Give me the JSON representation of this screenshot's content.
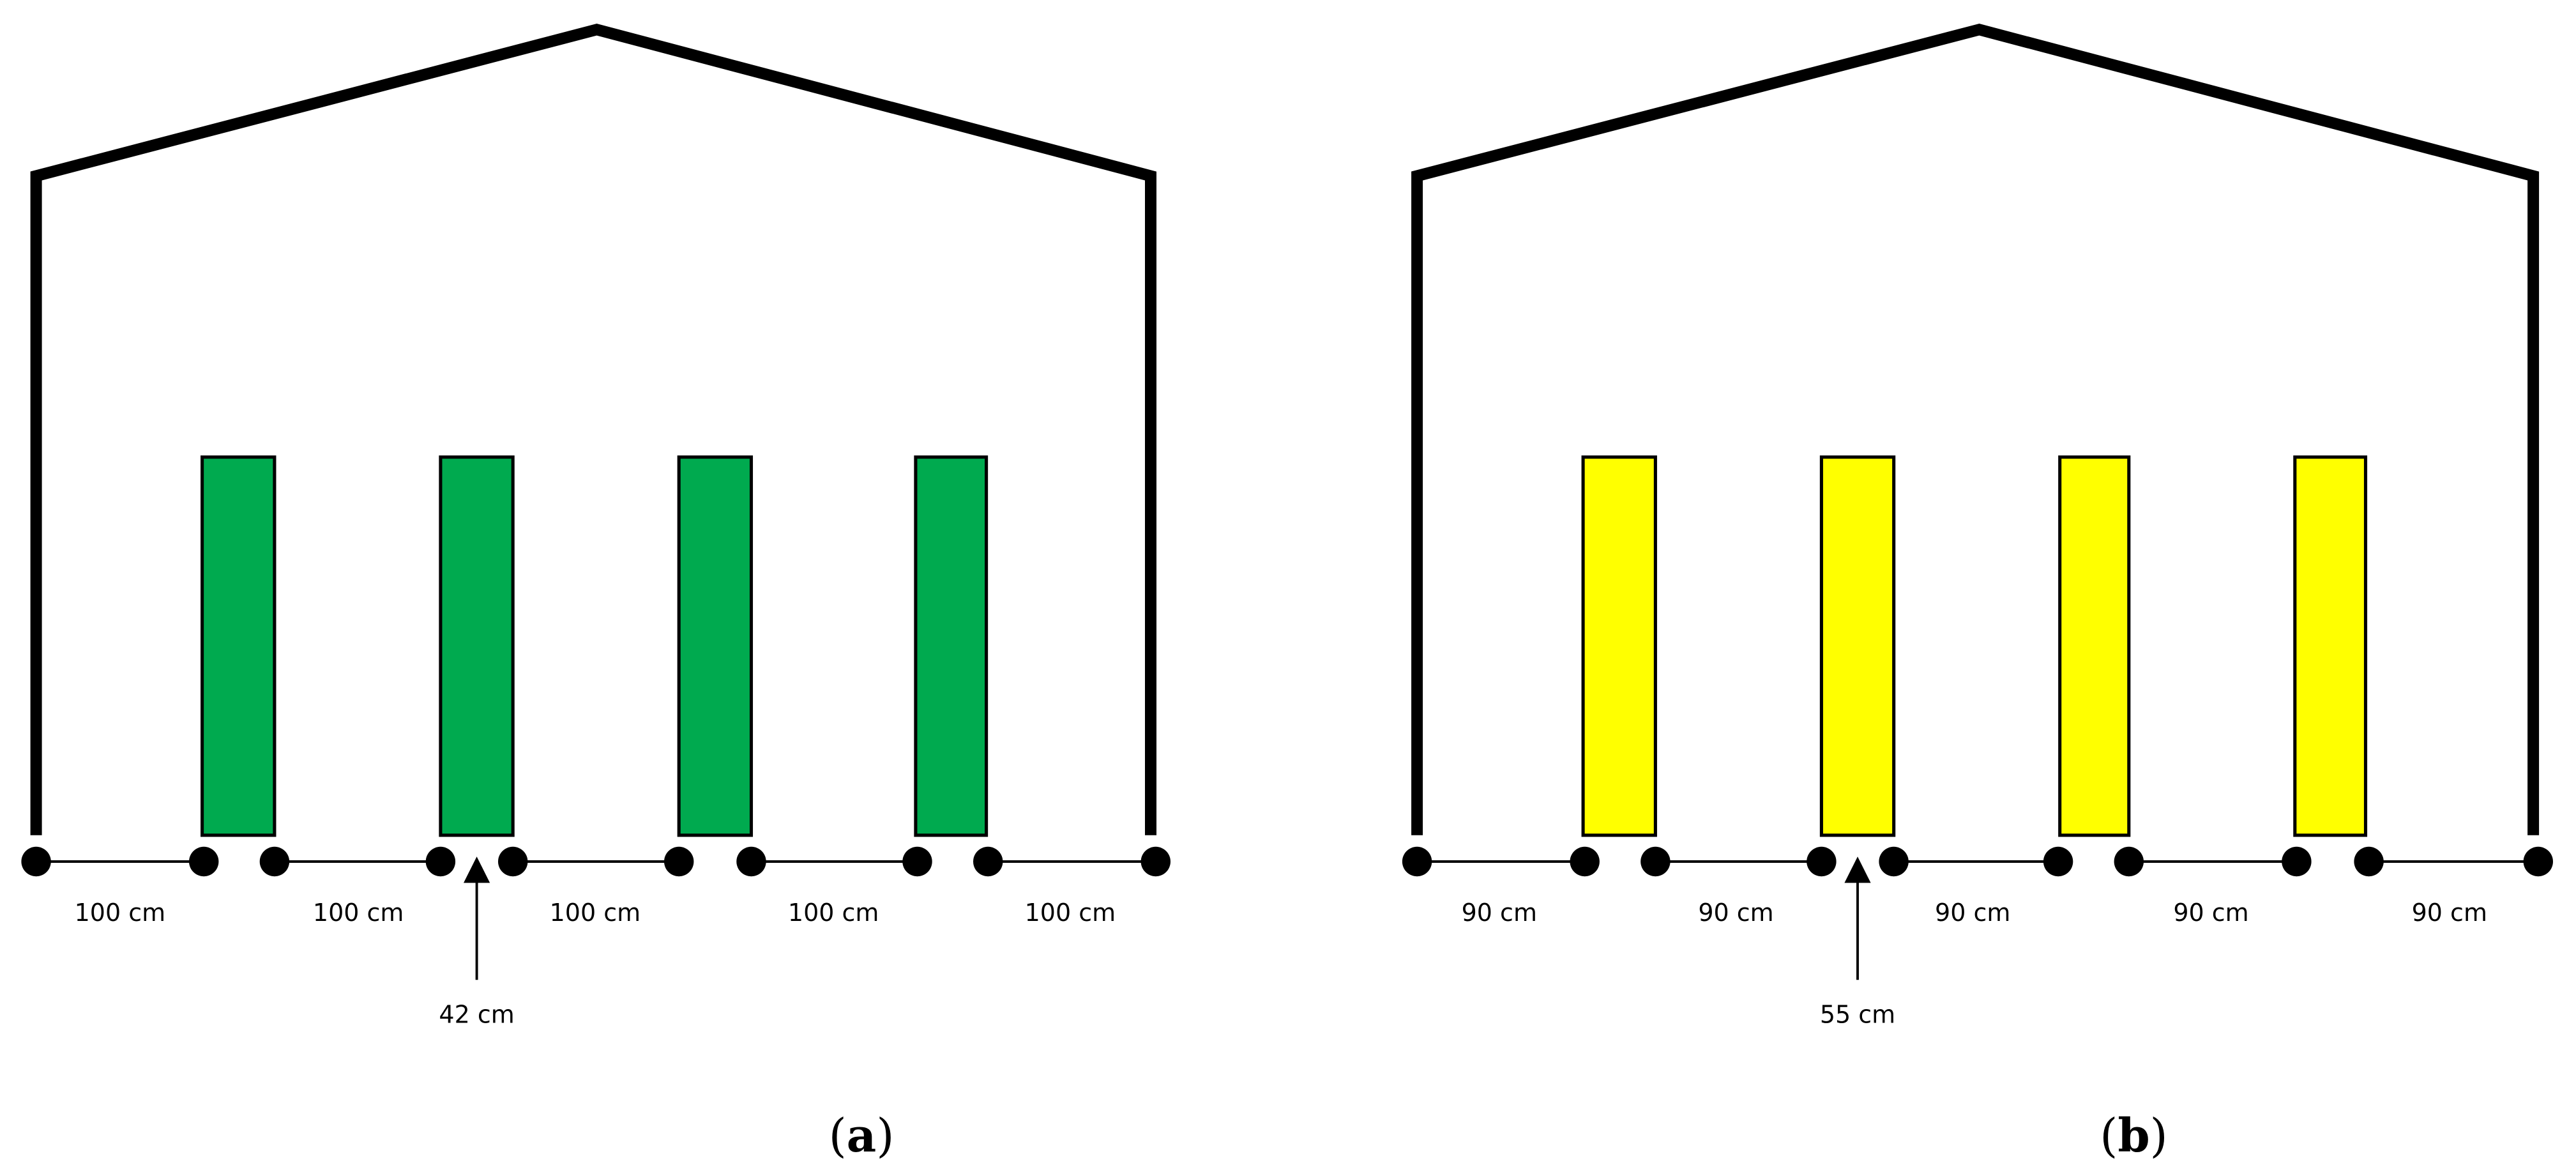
{
  "colors": {
    "panel_a_bed": "#00AA4F",
    "panel_b_bed": "#FFFF00",
    "outline": "#000000",
    "background": "#FFFFFF"
  },
  "panels": [
    {
      "id": "a",
      "label_open": "(",
      "label_letter": "a",
      "label_close": ")",
      "bed_color_key": "panel_a_bed",
      "bed_count": 4,
      "spacing_labels": [
        "100 cm",
        "100 cm",
        "100 cm",
        "100 cm",
        "100 cm"
      ],
      "bed_width_label": "42 cm"
    },
    {
      "id": "b",
      "label_open": "(",
      "label_letter": "b",
      "label_close": ")",
      "bed_color_key": "panel_b_bed",
      "bed_count": 4,
      "spacing_labels": [
        "90 cm",
        "90 cm",
        "90 cm",
        "90 cm",
        "90 cm"
      ],
      "bed_width_label": "55 cm"
    }
  ]
}
